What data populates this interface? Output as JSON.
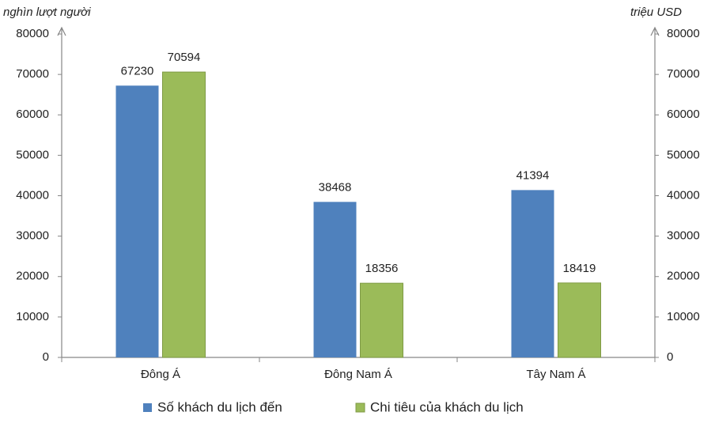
{
  "chart_data": {
    "type": "bar",
    "y_label": "nghìn lượt người",
    "y2_label": "triệu USD",
    "categories": [
      "Đông Á",
      "Đông Nam Á",
      "Tây Nam Á"
    ],
    "series": [
      {
        "name": "Số khách du lịch đến",
        "color": "#4f81bd",
        "values": [
          67230,
          38468,
          41394
        ]
      },
      {
        "name": "Chi tiêu của khách du lịch",
        "color": "#9bbb59",
        "axis": "y2",
        "values": [
          70594,
          18356,
          18419
        ]
      }
    ],
    "ylim": [
      0,
      80000
    ],
    "yticks": [
      0,
      10000,
      20000,
      30000,
      40000,
      50000,
      60000,
      70000,
      80000
    ],
    "y2lim": [
      0,
      80000
    ],
    "y2ticks": [
      0,
      10000,
      20000,
      30000,
      40000,
      50000,
      60000,
      70000,
      80000
    ],
    "grid": false,
    "legend": "bottom"
  }
}
